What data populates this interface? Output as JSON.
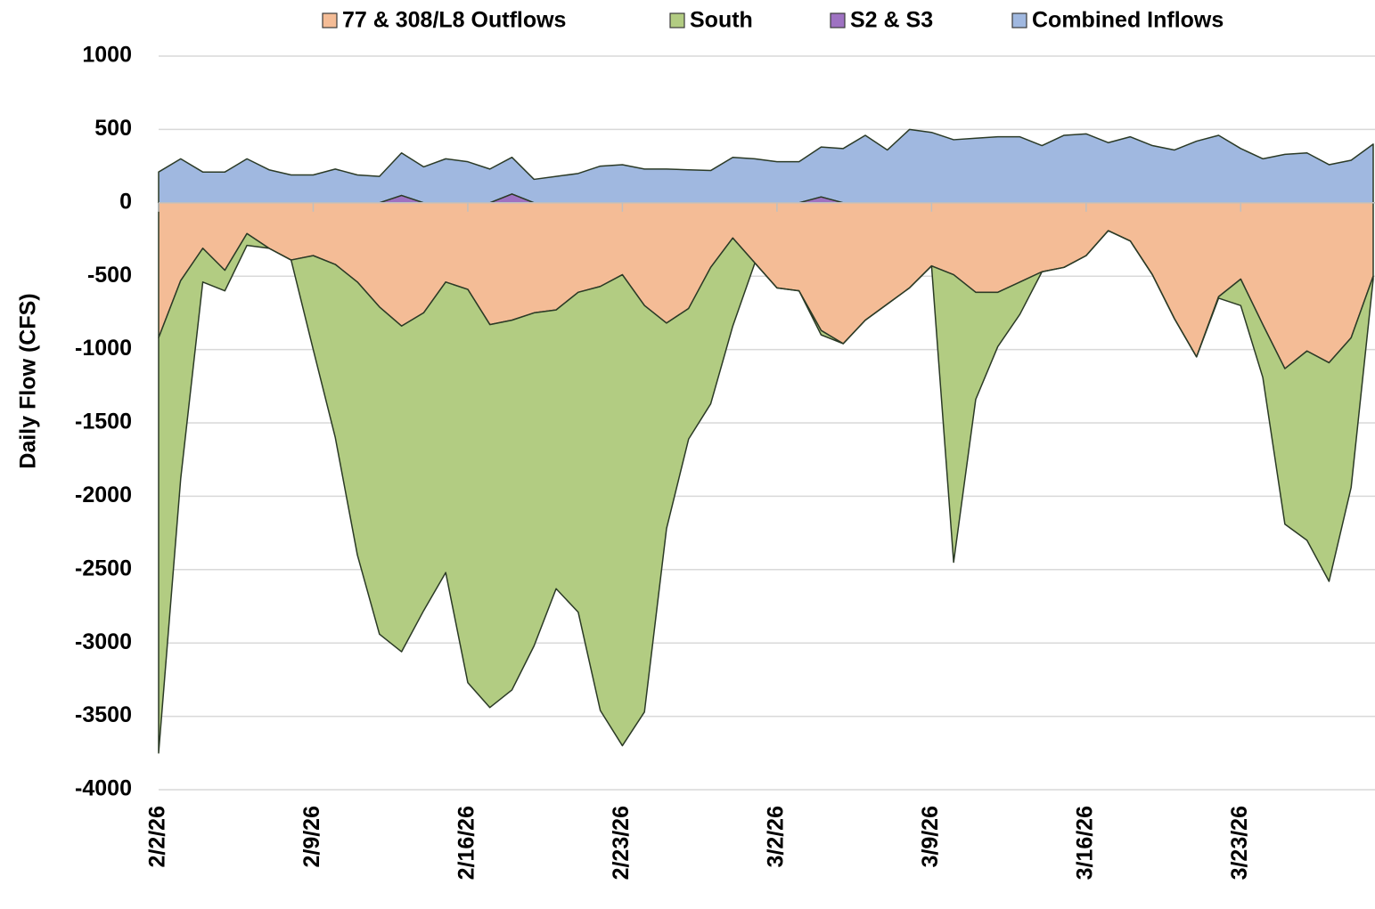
{
  "chart_data": {
    "type": "stacked-area",
    "y_label": "Daily Flow (CFS)",
    "categories": [
      "2/2/26",
      null,
      null,
      null,
      null,
      null,
      null,
      "2/9/26",
      null,
      null,
      null,
      null,
      null,
      null,
      "2/16/26",
      null,
      null,
      null,
      null,
      null,
      null,
      "2/23/26",
      null,
      null,
      null,
      null,
      null,
      null,
      "3/2/26",
      null,
      null,
      null,
      null,
      null,
      null,
      "3/9/26",
      null,
      null,
      null,
      null,
      null,
      null,
      "3/16/26",
      null,
      null,
      null,
      null,
      null,
      null,
      "3/23/26",
      null,
      null,
      null,
      null,
      null,
      null
    ],
    "series": [
      {
        "name": "77 & 308/L8 Outflows",
        "color": "#f4bc96",
        "values": [
          -920,
          -530,
          -310,
          -460,
          -210,
          -310,
          -390,
          -360,
          -420,
          -540,
          -710,
          -840,
          -750,
          -540,
          -590,
          -830,
          -800,
          -750,
          -730,
          -610,
          -570,
          -490,
          -700,
          -820,
          -720,
          -440,
          -240,
          -410,
          -580,
          -600,
          -870,
          -960,
          -800,
          -690,
          -580,
          -430,
          -490,
          -610,
          -610,
          -540,
          -470,
          -440,
          -360,
          -190,
          -260,
          -490,
          -790,
          -1050,
          -640,
          -520,
          -830,
          -1130,
          -1010,
          -1090,
          -920,
          -500
        ]
      },
      {
        "name": "South",
        "color": "#b2cc82",
        "values": [
          -2830,
          -1350,
          -230,
          -140,
          -80,
          0,
          0,
          -640,
          -1180,
          -1860,
          -2230,
          -2220,
          -2030,
          -1980,
          -2680,
          -2610,
          -2520,
          -2270,
          -1900,
          -2180,
          -2890,
          -3210,
          -2770,
          -1400,
          -890,
          -930,
          -600,
          0,
          0,
          0,
          -30,
          0,
          0,
          0,
          0,
          0,
          -1960,
          -730,
          -370,
          -220,
          0,
          0,
          0,
          0,
          0,
          0,
          0,
          0,
          -10,
          -180,
          -360,
          -1060,
          -1290,
          -1490,
          -1020,
          -20
        ]
      },
      {
        "name": "S2 & S3",
        "color": "#9e72c2",
        "values": [
          0,
          0,
          0,
          0,
          0,
          0,
          0,
          0,
          0,
          0,
          0,
          50,
          0,
          0,
          0,
          0,
          60,
          0,
          0,
          0,
          0,
          0,
          0,
          0,
          0,
          0,
          0,
          0,
          0,
          0,
          40,
          0,
          0,
          0,
          0,
          0,
          0,
          0,
          0,
          0,
          0,
          0,
          0,
          0,
          0,
          0,
          0,
          0,
          0,
          0,
          0,
          0,
          0,
          0,
          0,
          0
        ]
      },
      {
        "name": "Combined Inflows",
        "color": "#a0b8e0",
        "values": [
          210,
          300,
          210,
          210,
          300,
          225,
          190,
          190,
          230,
          190,
          180,
          290,
          245,
          300,
          280,
          230,
          250,
          160,
          180,
          200,
          250,
          260,
          230,
          230,
          225,
          220,
          310,
          300,
          280,
          280,
          340,
          370,
          460,
          360,
          500,
          480,
          430,
          440,
          450,
          450,
          390,
          460,
          470,
          410,
          450,
          390,
          360,
          420,
          460,
          370,
          300,
          330,
          340,
          260,
          290,
          400
        ]
      }
    ],
    "ylim": [
      -4000,
      1000
    ],
    "yticks": [
      -4000,
      -3500,
      -3000,
      -2500,
      -2000,
      -1500,
      -1000,
      -500,
      0,
      500,
      1000
    ],
    "grid": true,
    "legend": "top"
  }
}
